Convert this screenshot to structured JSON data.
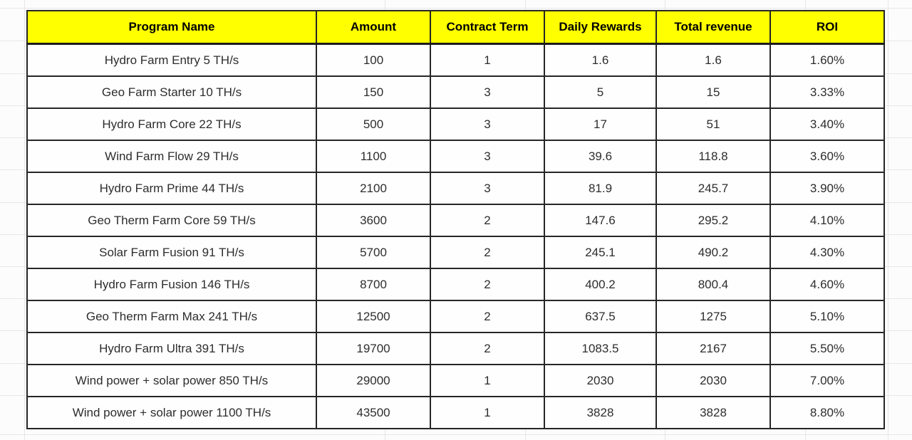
{
  "sheet": {
    "background": "#fcfcfc",
    "gridline_color": "#e7e7e7"
  },
  "table": {
    "header_bg": "#ffff00",
    "border_color": "#262626",
    "columns": [
      "Program Name",
      "Amount",
      "Contract Term",
      "Daily Rewards",
      "Total revenue",
      "ROI"
    ],
    "rows": [
      [
        "Hydro Farm Entry 5 TH/s",
        "100",
        "1",
        "1.6",
        "1.6",
        "1.60%"
      ],
      [
        "Geo Farm Starter 10 TH/s",
        "150",
        "3",
        "5",
        "15",
        "3.33%"
      ],
      [
        "Hydro Farm Core 22 TH/s",
        "500",
        "3",
        "17",
        "51",
        "3.40%"
      ],
      [
        "Wind Farm Flow 29 TH/s",
        "1100",
        "3",
        "39.6",
        "118.8",
        "3.60%"
      ],
      [
        "Hydro Farm Prime 44 TH/s",
        "2100",
        "3",
        "81.9",
        "245.7",
        "3.90%"
      ],
      [
        "Geo Therm Farm Core 59 TH/s",
        "3600",
        "2",
        "147.6",
        "295.2",
        "4.10%"
      ],
      [
        "Solar Farm Fusion 91 TH/s",
        "5700",
        "2",
        "245.1",
        "490.2",
        "4.30%"
      ],
      [
        "Hydro Farm Fusion 146 TH/s",
        "8700",
        "2",
        "400.2",
        "800.4",
        "4.60%"
      ],
      [
        "Geo Therm Farm Max 241 TH/s",
        "12500",
        "2",
        "637.5",
        "1275",
        "5.10%"
      ],
      [
        "Hydro Farm Ultra 391 TH/s",
        "19700",
        "2",
        "1083.5",
        "2167",
        "5.50%"
      ],
      [
        "Wind power + solar power 850 TH/s",
        "29000",
        "1",
        "2030",
        "2030",
        "7.00%"
      ],
      [
        "Wind power + solar power 1100 TH/s",
        "43500",
        "1",
        "3828",
        "3828",
        "8.80%"
      ]
    ]
  }
}
